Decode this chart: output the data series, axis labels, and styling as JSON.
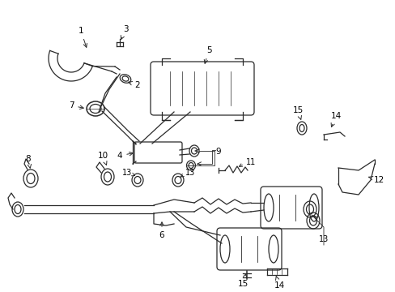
{
  "bg_color": "#ffffff",
  "lc": "#2a2a2a",
  "lw": 0.9,
  "figsize": [
    4.89,
    3.6
  ],
  "dpi": 100
}
